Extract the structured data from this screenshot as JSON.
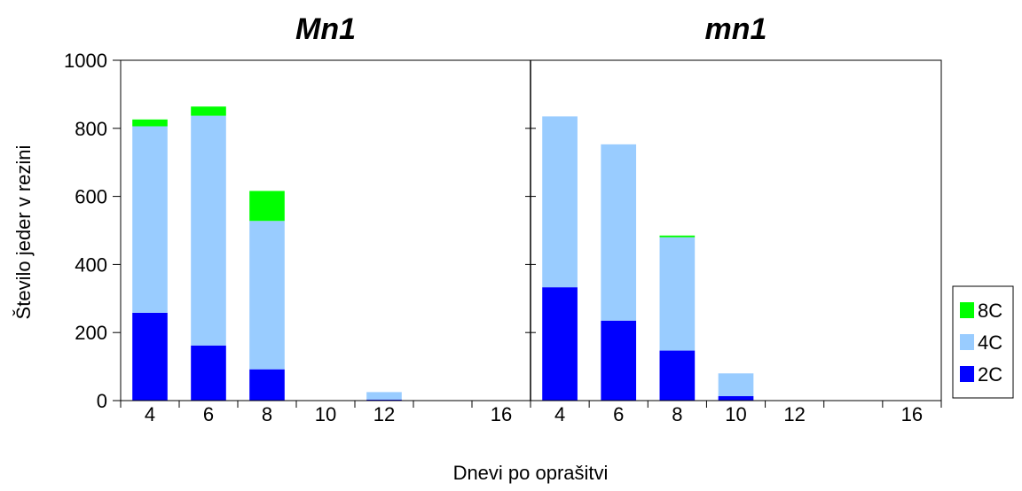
{
  "chart_data": {
    "type": "bar",
    "stacked": true,
    "ylabel": "Število jeder v rezini",
    "xlabel": "Dnevi po oprašitvi",
    "ylim": [
      0,
      1000
    ],
    "yticks": [
      "0",
      "200",
      "400",
      "600",
      "800",
      "1000"
    ],
    "categories": [
      "4",
      "6",
      "8",
      "10",
      "12",
      "",
      "16"
    ],
    "legend": {
      "position": "right",
      "entries": [
        "8C",
        "4C",
        "2C"
      ]
    },
    "colors": {
      "2C": "#0000ff",
      "4C": "#99ccff",
      "8C": "#00ff00"
    },
    "panels": [
      {
        "title": "Mn1",
        "series": [
          {
            "name": "2C",
            "values": [
              258,
              162,
              92,
              0,
              3,
              0,
              0
            ]
          },
          {
            "name": "4C",
            "values": [
              548,
              675,
              436,
              0,
              22,
              0,
              0
            ]
          },
          {
            "name": "8C",
            "values": [
              20,
              27,
              88,
              0,
              0,
              0,
              0
            ]
          }
        ]
      },
      {
        "title": "mn1",
        "series": [
          {
            "name": "2C",
            "values": [
              333,
              235,
              147,
              13,
              0,
              0,
              0
            ]
          },
          {
            "name": "4C",
            "values": [
              502,
              518,
              333,
              67,
              0,
              0,
              0
            ]
          },
          {
            "name": "8C",
            "values": [
              0,
              0,
              5,
              0,
              0,
              0,
              0
            ]
          }
        ]
      }
    ]
  }
}
